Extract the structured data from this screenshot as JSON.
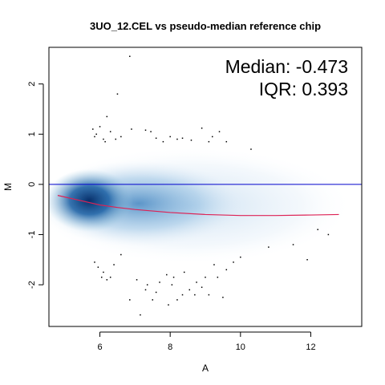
{
  "chart_data": {
    "type": "scatter",
    "title": "3UO_12.CEL vs pseudo-median reference chip",
    "xlabel": "A",
    "ylabel": "M",
    "xlim": [
      4.55,
      13.45
    ],
    "ylim": [
      -2.83,
      2.73
    ],
    "xticks": [
      6,
      8,
      10,
      12
    ],
    "yticks": [
      -2,
      -1,
      0,
      1,
      2
    ],
    "x_tick_labels": [
      "6",
      "8",
      "10",
      "12"
    ],
    "y_tick_labels": [
      "-2",
      "-1",
      "0",
      "1",
      "2"
    ],
    "annotations": [
      "Median: -0.473",
      "IQR: 0.393"
    ],
    "reference_line": {
      "y": 0,
      "color": "#0000cc"
    },
    "loess_curve": {
      "color": "#dd2255",
      "x": [
        4.8,
        5.5,
        6.0,
        6.5,
        7.0,
        7.5,
        8.0,
        9.0,
        10.0,
        11.0,
        12.0,
        12.8
      ],
      "y": [
        -0.22,
        -0.33,
        -0.41,
        -0.46,
        -0.5,
        -0.53,
        -0.56,
        -0.6,
        -0.62,
        -0.62,
        -0.61,
        -0.6
      ]
    },
    "density_color": "#08306b",
    "outlier_points": [
      [
        6.85,
        2.55
      ],
      [
        6.5,
        1.8
      ],
      [
        6.2,
        1.35
      ],
      [
        5.8,
        1.1
      ],
      [
        5.9,
        1.0
      ],
      [
        6.0,
        1.15
      ],
      [
        5.85,
        0.95
      ],
      [
        6.1,
        0.9
      ],
      [
        6.15,
        0.85
      ],
      [
        6.3,
        1.05
      ],
      [
        6.45,
        0.9
      ],
      [
        6.6,
        0.95
      ],
      [
        6.9,
        1.1
      ],
      [
        7.3,
        1.08
      ],
      [
        7.45,
        1.05
      ],
      [
        7.6,
        0.92
      ],
      [
        7.8,
        0.85
      ],
      [
        8.0,
        0.95
      ],
      [
        8.2,
        0.9
      ],
      [
        8.35,
        0.92
      ],
      [
        8.6,
        0.88
      ],
      [
        8.9,
        1.12
      ],
      [
        9.1,
        0.85
      ],
      [
        9.2,
        0.95
      ],
      [
        9.4,
        1.05
      ],
      [
        9.6,
        0.85
      ],
      [
        10.3,
        0.7
      ],
      [
        5.85,
        -1.55
      ],
      [
        5.95,
        -1.65
      ],
      [
        6.1,
        -1.75
      ],
      [
        6.2,
        -1.9
      ],
      [
        6.3,
        -1.85
      ],
      [
        6.05,
        -1.85
      ],
      [
        6.4,
        -1.6
      ],
      [
        6.6,
        -1.4
      ],
      [
        6.85,
        -2.3
      ],
      [
        7.05,
        -1.9
      ],
      [
        7.15,
        -2.6
      ],
      [
        7.3,
        -2.1
      ],
      [
        7.35,
        -2.0
      ],
      [
        7.5,
        -2.3
      ],
      [
        7.6,
        -2.15
      ],
      [
        7.7,
        -1.95
      ],
      [
        7.9,
        -1.8
      ],
      [
        7.95,
        -2.4
      ],
      [
        8.05,
        -2.0
      ],
      [
        8.1,
        -1.85
      ],
      [
        8.2,
        -2.3
      ],
      [
        8.35,
        -2.2
      ],
      [
        8.4,
        -1.75
      ],
      [
        8.55,
        -2.1
      ],
      [
        8.7,
        -2.2
      ],
      [
        8.75,
        -1.95
      ],
      [
        8.9,
        -2.05
      ],
      [
        9.0,
        -1.85
      ],
      [
        9.1,
        -2.2
      ],
      [
        9.25,
        -1.6
      ],
      [
        9.35,
        -1.85
      ],
      [
        9.5,
        -2.25
      ],
      [
        9.6,
        -1.7
      ],
      [
        9.8,
        -1.55
      ],
      [
        10.0,
        -1.45
      ],
      [
        10.8,
        -1.25
      ],
      [
        11.5,
        -1.2
      ],
      [
        11.9,
        -1.5
      ],
      [
        12.2,
        -0.9
      ],
      [
        12.5,
        -1.0
      ]
    ]
  }
}
